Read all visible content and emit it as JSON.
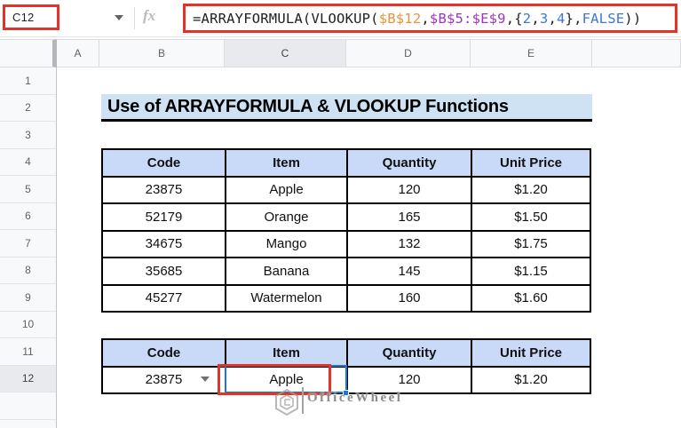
{
  "formula_bar": {
    "name_box": "C12",
    "fx_label": "fx",
    "formula_segments": [
      {
        "t": "=ARRAYFORMULA(VLOOKUP(",
        "c": "#202124"
      },
      {
        "t": "$B$12",
        "c": "#ef9135"
      },
      {
        "t": ",",
        "c": "#202124"
      },
      {
        "t": "$B$5:$E$9",
        "c": "#9d35bc"
      },
      {
        "t": ",{",
        "c": "#202124"
      },
      {
        "t": "2",
        "c": "#3d77d8"
      },
      {
        "t": ",",
        "c": "#202124"
      },
      {
        "t": "3",
        "c": "#3d77d8"
      },
      {
        "t": ",",
        "c": "#202124"
      },
      {
        "t": "4",
        "c": "#3d77d8"
      },
      {
        "t": "},",
        "c": "#202124"
      },
      {
        "t": "FALSE",
        "c": "#3d77d8"
      },
      {
        "t": "))",
        "c": "#202124"
      }
    ]
  },
  "column_headers": {
    "labels": [
      "A",
      "B",
      "C",
      "D",
      "E",
      ""
    ],
    "selected": "C"
  },
  "row_headers": {
    "labels": [
      "1",
      "2",
      "3",
      "4",
      "5",
      "6",
      "7",
      "8",
      "9",
      "10",
      "11",
      "12",
      ""
    ],
    "selected": "12"
  },
  "sheet": {
    "title": "Use of ARRAYFORMULA & VLOOKUP Functions",
    "selected_cell": "C12",
    "lookup_table": {
      "headers": [
        "Code",
        "Item",
        "Quantity",
        "Unit Price"
      ],
      "rows": [
        [
          "23875",
          "Apple",
          "120",
          "$1.20"
        ],
        [
          "52179",
          "Orange",
          "165",
          "$1.50"
        ],
        [
          "34675",
          "Mango",
          "132",
          "$1.75"
        ],
        [
          "35685",
          "Banana",
          "145",
          "$1.15"
        ],
        [
          "45277",
          "Watermelon",
          "160",
          "$1.60"
        ]
      ]
    },
    "result_table": {
      "headers": [
        "Code",
        "Item",
        "Quantity",
        "Unit Price"
      ],
      "rows": [
        [
          "23875",
          "Apple",
          "120",
          "$1.20"
        ]
      ]
    }
  },
  "watermark": {
    "text": "OfficeWheel"
  },
  "colors": {
    "annotation_red": "#e0342b",
    "selection_blue": "#1a73e8",
    "title_bg": "#cfe2f3",
    "table_header_bg": "#c9daf8",
    "header_strip_bg": "#f8f9fa",
    "selected_header_bg": "#e8eaed"
  }
}
